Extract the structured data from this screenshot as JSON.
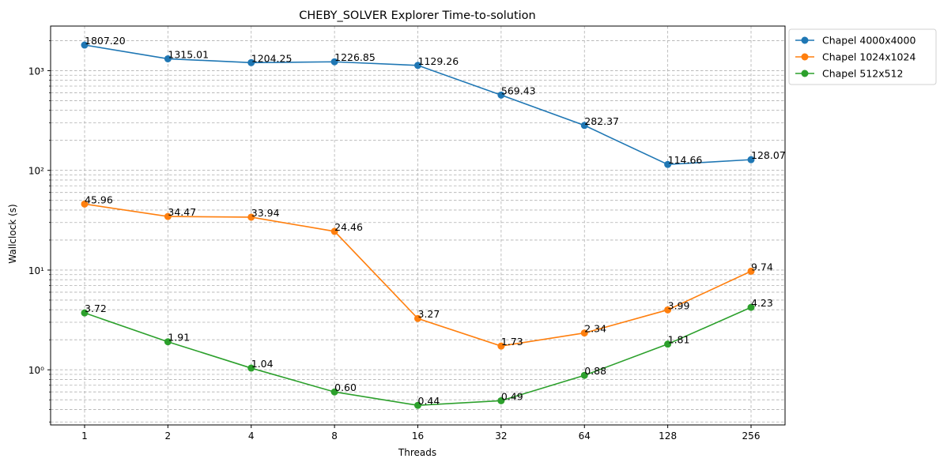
{
  "chart_data": {
    "type": "line",
    "title": "CHEBY_SOLVER Explorer Time-to-solution",
    "xlabel": "Threads",
    "ylabel": "Wallclock (s)",
    "x_scale": "log2",
    "y_scale": "log",
    "ylim": [
      0.28,
      2800
    ],
    "grid": true,
    "legend_position": "outside-top-right",
    "categories": [
      "1",
      "2",
      "4",
      "8",
      "16",
      "32",
      "64",
      "128",
      "256"
    ],
    "y_ticks": [
      {
        "value": 1,
        "label": "10⁰"
      },
      {
        "value": 10,
        "label": "10¹"
      },
      {
        "value": 100,
        "label": "10²"
      },
      {
        "value": 1000,
        "label": "10³"
      }
    ],
    "series": [
      {
        "name": "Chapel 4000x4000",
        "color": "#1f77b4",
        "values": [
          1807.2,
          1315.01,
          1204.25,
          1226.85,
          1129.26,
          569.43,
          282.37,
          114.66,
          128.07
        ],
        "labels": [
          "1807.20",
          "1315.01",
          "1204.25",
          "1226.85",
          "1129.26",
          "569.43",
          "282.37",
          "114.66",
          "128.07"
        ]
      },
      {
        "name": "Chapel 1024x1024",
        "color": "#ff7f0e",
        "values": [
          45.96,
          34.47,
          33.94,
          24.46,
          3.27,
          1.73,
          2.34,
          3.99,
          9.74
        ],
        "labels": [
          "45.96",
          "34.47",
          "33.94",
          "24.46",
          "3.27",
          "1.73",
          "2.34",
          "3.99",
          "9.74"
        ]
      },
      {
        "name": "Chapel 512x512",
        "color": "#2ca02c",
        "values": [
          3.72,
          1.91,
          1.04,
          0.6,
          0.44,
          0.49,
          0.88,
          1.81,
          4.23
        ],
        "labels": [
          "3.72",
          "1.91",
          "1.04",
          "0.60",
          "0.44",
          "0.49",
          "0.88",
          "1.81",
          "4.23"
        ]
      }
    ]
  }
}
